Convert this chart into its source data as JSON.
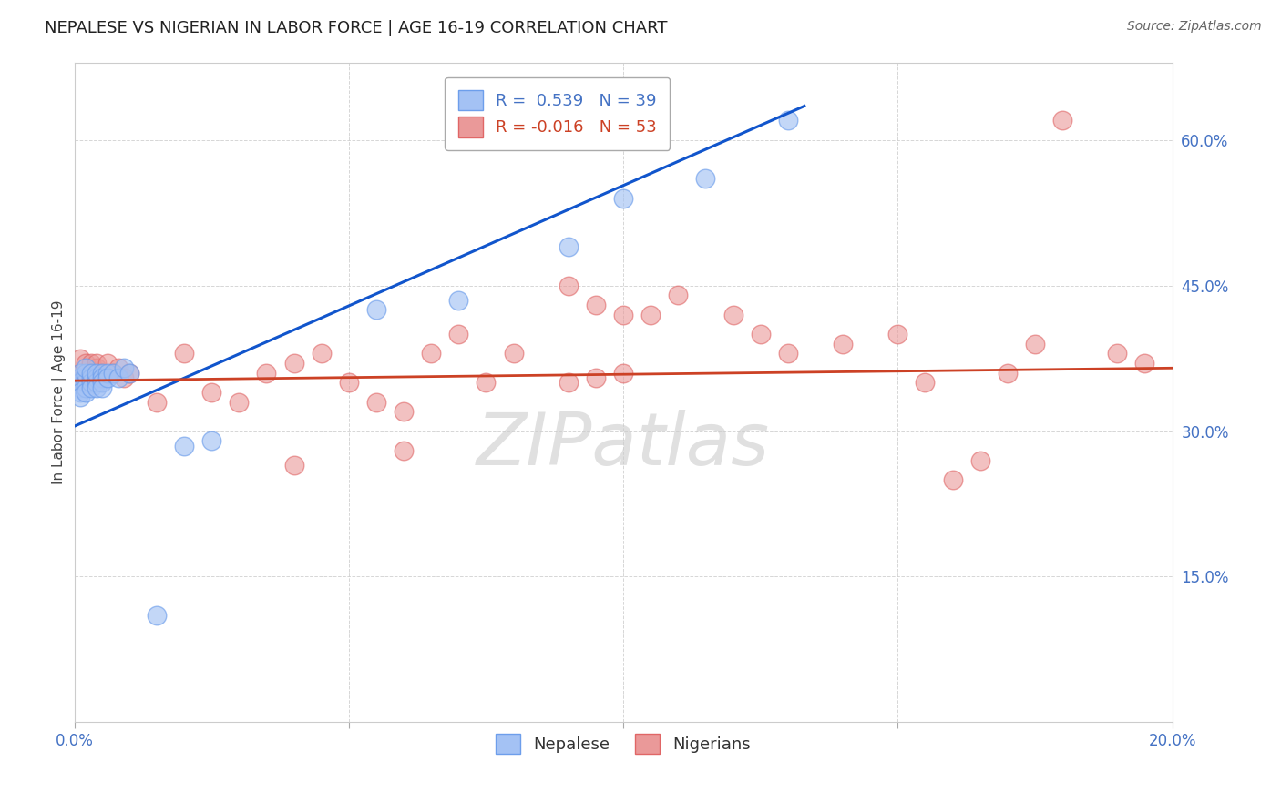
{
  "title": "NEPALESE VS NIGERIAN IN LABOR FORCE | AGE 16-19 CORRELATION CHART",
  "source": "Source: ZipAtlas.com",
  "ylabel": "In Labor Force | Age 16-19",
  "xlim": [
    0.0,
    0.2
  ],
  "ylim": [
    0.0,
    0.68
  ],
  "xticks": [
    0.0,
    0.05,
    0.1,
    0.15,
    0.2
  ],
  "xtick_labels": [
    "0.0%",
    "",
    "",
    "",
    "20.0%"
  ],
  "yticks": [
    0.15,
    0.3,
    0.45,
    0.6
  ],
  "ytick_labels": [
    "15.0%",
    "30.0%",
    "45.0%",
    "60.0%"
  ],
  "blue_R": 0.539,
  "blue_N": 39,
  "pink_R": -0.016,
  "pink_N": 53,
  "blue_color": "#a4c2f4",
  "pink_color": "#ea9999",
  "blue_edge_color": "#6d9eeb",
  "pink_edge_color": "#e06666",
  "blue_line_color": "#1155cc",
  "pink_line_color": "#cc4125",
  "legend_label_blue": "Nepalese",
  "legend_label_pink": "Nigerians",
  "watermark": "ZIPatlas",
  "blue_x": [
    0.001,
    0.001,
    0.001,
    0.001,
    0.001,
    0.001,
    0.002,
    0.002,
    0.002,
    0.002,
    0.002,
    0.002,
    0.003,
    0.003,
    0.003,
    0.003,
    0.004,
    0.004,
    0.004,
    0.004,
    0.005,
    0.005,
    0.005,
    0.005,
    0.006,
    0.006,
    0.007,
    0.008,
    0.009,
    0.01,
    0.015,
    0.02,
    0.025,
    0.055,
    0.07,
    0.09,
    0.1,
    0.115,
    0.13
  ],
  "blue_y": [
    0.355,
    0.35,
    0.345,
    0.34,
    0.335,
    0.36,
    0.355,
    0.35,
    0.345,
    0.34,
    0.36,
    0.365,
    0.355,
    0.35,
    0.345,
    0.36,
    0.355,
    0.35,
    0.345,
    0.36,
    0.36,
    0.355,
    0.35,
    0.345,
    0.36,
    0.355,
    0.36,
    0.355,
    0.365,
    0.36,
    0.11,
    0.285,
    0.29,
    0.425,
    0.435,
    0.49,
    0.54,
    0.56,
    0.62
  ],
  "pink_x": [
    0.001,
    0.001,
    0.001,
    0.002,
    0.002,
    0.003,
    0.003,
    0.004,
    0.004,
    0.005,
    0.005,
    0.006,
    0.007,
    0.008,
    0.009,
    0.01,
    0.015,
    0.02,
    0.025,
    0.03,
    0.035,
    0.04,
    0.045,
    0.05,
    0.055,
    0.06,
    0.065,
    0.07,
    0.075,
    0.08,
    0.09,
    0.095,
    0.1,
    0.105,
    0.11,
    0.12,
    0.125,
    0.13,
    0.14,
    0.15,
    0.155,
    0.16,
    0.165,
    0.17,
    0.175,
    0.18,
    0.19,
    0.195,
    0.09,
    0.095,
    0.1,
    0.06,
    0.04
  ],
  "pink_y": [
    0.35,
    0.36,
    0.375,
    0.35,
    0.37,
    0.36,
    0.37,
    0.365,
    0.37,
    0.355,
    0.36,
    0.37,
    0.36,
    0.365,
    0.355,
    0.36,
    0.33,
    0.38,
    0.34,
    0.33,
    0.36,
    0.37,
    0.38,
    0.35,
    0.33,
    0.32,
    0.38,
    0.4,
    0.35,
    0.38,
    0.35,
    0.355,
    0.36,
    0.42,
    0.44,
    0.42,
    0.4,
    0.38,
    0.39,
    0.4,
    0.35,
    0.25,
    0.27,
    0.36,
    0.39,
    0.62,
    0.38,
    0.37,
    0.45,
    0.43,
    0.42,
    0.28,
    0.265
  ],
  "blue_trend_x": [
    0.0,
    0.133
  ],
  "blue_trend_y": [
    0.305,
    0.635
  ],
  "pink_trend_x": [
    0.0,
    0.2
  ],
  "pink_trend_y": [
    0.352,
    0.365
  ]
}
